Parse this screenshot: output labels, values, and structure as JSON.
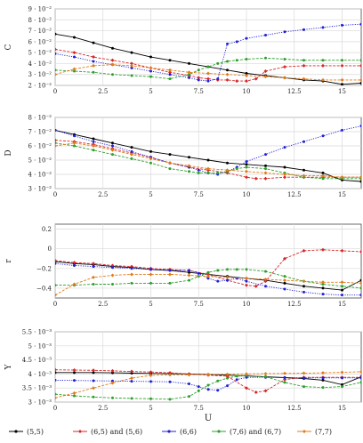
{
  "chart_data": [
    {
      "type": "line",
      "ylabel": "C",
      "xlabel": "",
      "xlim": [
        0,
        16
      ],
      "ylim": [
        0.02,
        0.09
      ],
      "xticks": [
        "0",
        "2.5",
        "5",
        "7.5",
        "10",
        "12.5",
        "15"
      ],
      "yticks": [
        "2 · 10⁻²",
        "3 · 10⁻²",
        "4 · 10⁻²",
        "5 · 10⁻²",
        "6 · 10⁻²",
        "7 · 10⁻²",
        "8 · 10⁻²",
        "9 · 10⁻²"
      ],
      "grid": true,
      "series": [
        {
          "name": "(5,5)",
          "color": "#000000",
          "x": [
            0,
            1,
            2,
            3,
            4,
            5,
            6,
            7,
            8,
            9,
            10,
            11,
            12,
            13,
            14,
            15,
            16
          ],
          "y": [
            0.067,
            0.064,
            0.059,
            0.054,
            0.05,
            0.046,
            0.043,
            0.04,
            0.037,
            0.034,
            0.031,
            0.029,
            0.027,
            0.025,
            0.024,
            0.021,
            0.022
          ]
        },
        {
          "name": "(6,5) and (5,6)",
          "color": "#d62728",
          "x": [
            0,
            1,
            2,
            3,
            4,
            5,
            6,
            7,
            7.5,
            8,
            8.5,
            9,
            9.5,
            10,
            10.5,
            11,
            12,
            13,
            14,
            15,
            16
          ],
          "y": [
            0.053,
            0.05,
            0.046,
            0.043,
            0.04,
            0.036,
            0.032,
            0.029,
            0.027,
            0.026,
            0.025,
            0.025,
            0.024,
            0.024,
            0.026,
            0.033,
            0.037,
            0.038,
            0.038,
            0.038,
            0.038
          ]
        },
        {
          "name": "(6,6)",
          "color": "#1f1fd6",
          "x": [
            0,
            1,
            2,
            3,
            4,
            5,
            6,
            7,
            7.5,
            8,
            8.5,
            9,
            9.5,
            10,
            11,
            12,
            13,
            14,
            15,
            16
          ],
          "y": [
            0.049,
            0.046,
            0.042,
            0.039,
            0.036,
            0.033,
            0.03,
            0.027,
            0.025,
            0.024,
            0.026,
            0.058,
            0.06,
            0.063,
            0.066,
            0.069,
            0.071,
            0.073,
            0.075,
            0.076
          ]
        },
        {
          "name": "(7,6) and (6,7)",
          "color": "#2ca02c",
          "x": [
            0,
            1,
            2,
            3,
            4,
            5,
            6,
            7,
            7.5,
            8,
            8.5,
            9,
            9.5,
            10,
            11,
            12,
            13,
            14,
            15,
            16
          ],
          "y": [
            0.034,
            0.033,
            0.032,
            0.03,
            0.029,
            0.028,
            0.026,
            0.03,
            0.034,
            0.037,
            0.04,
            0.042,
            0.043,
            0.044,
            0.045,
            0.044,
            0.043,
            0.043,
            0.043,
            0.043
          ]
        },
        {
          "name": "(7,7)",
          "color": "#e07b1a",
          "x": [
            0,
            1,
            2,
            3,
            4,
            5,
            6,
            7,
            8,
            9,
            10,
            11,
            12,
            13,
            14,
            15,
            16
          ],
          "y": [
            0.03,
            0.035,
            0.038,
            0.039,
            0.038,
            0.036,
            0.034,
            0.032,
            0.031,
            0.03,
            0.029,
            0.028,
            0.027,
            0.026,
            0.025,
            0.025,
            0.025
          ]
        }
      ]
    },
    {
      "type": "line",
      "ylabel": "D",
      "xlabel": "",
      "xlim": [
        0,
        16
      ],
      "ylim": [
        0.03,
        0.08
      ],
      "xticks": [
        "0",
        "2.5",
        "5",
        "7.5",
        "10",
        "12.5",
        "15"
      ],
      "yticks": [
        "3 · 10⁻²",
        "4 · 10⁻²",
        "5 · 10⁻²",
        "6 · 10⁻²",
        "7 · 10⁻²",
        "8 · 10⁻²"
      ],
      "grid": true,
      "series": [
        {
          "name": "(5,5)",
          "color": "#000000",
          "x": [
            0,
            1,
            2,
            3,
            4,
            5,
            6,
            7,
            8,
            9,
            10,
            11,
            12,
            13,
            14,
            15,
            16
          ],
          "y": [
            0.071,
            0.068,
            0.065,
            0.062,
            0.059,
            0.056,
            0.054,
            0.052,
            0.05,
            0.048,
            0.047,
            0.046,
            0.045,
            0.043,
            0.041,
            0.036,
            0.035
          ]
        },
        {
          "name": "(6,5) and (5,6)",
          "color": "#d62728",
          "x": [
            0,
            1,
            2,
            3,
            4,
            5,
            6,
            7,
            8,
            9,
            10,
            10.5,
            11,
            12,
            13,
            14,
            15,
            16
          ],
          "y": [
            0.064,
            0.063,
            0.061,
            0.058,
            0.055,
            0.052,
            0.048,
            0.045,
            0.043,
            0.041,
            0.038,
            0.037,
            0.037,
            0.038,
            0.038,
            0.038,
            0.038,
            0.038
          ]
        },
        {
          "name": "(6,6)",
          "color": "#1f1fd6",
          "x": [
            0,
            1,
            2,
            3,
            4,
            5,
            6,
            7,
            7.5,
            8,
            8.5,
            9,
            9.5,
            10,
            11,
            12,
            13,
            14,
            15,
            16
          ],
          "y": [
            0.071,
            0.067,
            0.063,
            0.06,
            0.056,
            0.052,
            0.048,
            0.045,
            0.043,
            0.041,
            0.04,
            0.042,
            0.045,
            0.049,
            0.054,
            0.059,
            0.063,
            0.067,
            0.071,
            0.074
          ]
        },
        {
          "name": "(7,6) and (6,7)",
          "color": "#2ca02c",
          "x": [
            0,
            1,
            2,
            3,
            4,
            5,
            6,
            7,
            7.5,
            8,
            8.5,
            9,
            9.5,
            10,
            11,
            12,
            13,
            14,
            15,
            16
          ],
          "y": [
            0.062,
            0.06,
            0.057,
            0.054,
            0.051,
            0.048,
            0.044,
            0.042,
            0.041,
            0.041,
            0.041,
            0.042,
            0.044,
            0.045,
            0.044,
            0.041,
            0.038,
            0.037,
            0.037,
            0.037
          ]
        },
        {
          "name": "(7,7)",
          "color": "#e07b1a",
          "x": [
            0,
            1,
            2,
            3,
            4,
            5,
            6,
            7,
            8,
            9,
            10,
            11,
            12,
            13,
            14,
            15,
            16
          ],
          "y": [
            0.06,
            0.062,
            0.06,
            0.057,
            0.054,
            0.051,
            0.048,
            0.046,
            0.044,
            0.043,
            0.042,
            0.041,
            0.04,
            0.039,
            0.039,
            0.038,
            0.038
          ]
        }
      ]
    },
    {
      "type": "line",
      "ylabel": "r",
      "xlabel": "",
      "xlim": [
        0,
        16
      ],
      "ylim": [
        -0.5,
        0.25
      ],
      "xticks": [
        "0",
        "2.5",
        "5",
        "7.5",
        "10",
        "12.5",
        "15"
      ],
      "yticks": [
        "−0.4",
        "−0.2",
        "0",
        "0.2"
      ],
      "grid": true,
      "series": [
        {
          "name": "(5,5)",
          "color": "#000000",
          "x": [
            0,
            1,
            2,
            3,
            4,
            5,
            6,
            7,
            8,
            9,
            10,
            11,
            12,
            13,
            14,
            15,
            16
          ],
          "y": [
            -0.13,
            -0.15,
            -0.16,
            -0.18,
            -0.19,
            -0.21,
            -0.22,
            -0.24,
            -0.26,
            -0.28,
            -0.3,
            -0.32,
            -0.35,
            -0.38,
            -0.4,
            -0.42,
            -0.32
          ]
        },
        {
          "name": "(6,5) and (5,6)",
          "color": "#d62728",
          "x": [
            0,
            1,
            2,
            3,
            4,
            5,
            6,
            7,
            8,
            9,
            10,
            10.5,
            11,
            12,
            13,
            14,
            15,
            16
          ],
          "y": [
            -0.12,
            -0.14,
            -0.15,
            -0.17,
            -0.18,
            -0.2,
            -0.21,
            -0.22,
            -0.26,
            -0.32,
            -0.37,
            -0.38,
            -0.33,
            -0.1,
            -0.02,
            -0.01,
            -0.02,
            -0.03
          ]
        },
        {
          "name": "(6,6)",
          "color": "#1f1fd6",
          "x": [
            0,
            1,
            2,
            3,
            4,
            5,
            6,
            7,
            7.5,
            8,
            8.5,
            9,
            9.5,
            10,
            11,
            12,
            13,
            14,
            15,
            16
          ],
          "y": [
            -0.15,
            -0.17,
            -0.18,
            -0.19,
            -0.2,
            -0.21,
            -0.22,
            -0.22,
            -0.25,
            -0.3,
            -0.33,
            -0.32,
            -0.3,
            -0.33,
            -0.38,
            -0.41,
            -0.44,
            -0.46,
            -0.47,
            -0.47
          ]
        },
        {
          "name": "(7,6) and (6,7)",
          "color": "#2ca02c",
          "x": [
            0,
            1,
            2,
            3,
            4,
            5,
            6,
            7,
            7.5,
            8,
            8.5,
            9,
            9.5,
            10,
            11,
            12,
            13,
            14,
            15,
            16
          ],
          "y": [
            -0.37,
            -0.37,
            -0.36,
            -0.36,
            -0.35,
            -0.35,
            -0.35,
            -0.32,
            -0.28,
            -0.24,
            -0.22,
            -0.21,
            -0.21,
            -0.21,
            -0.23,
            -0.28,
            -0.33,
            -0.36,
            -0.38,
            -0.4
          ]
        },
        {
          "name": "(7,7)",
          "color": "#e07b1a",
          "x": [
            0,
            1,
            2,
            3,
            4,
            5,
            6,
            7,
            8,
            9,
            10,
            11,
            12,
            13,
            14,
            15,
            16
          ],
          "y": [
            -0.47,
            -0.36,
            -0.29,
            -0.27,
            -0.26,
            -0.26,
            -0.26,
            -0.27,
            -0.28,
            -0.29,
            -0.3,
            -0.31,
            -0.32,
            -0.33,
            -0.34,
            -0.34,
            -0.35
          ]
        }
      ]
    },
    {
      "type": "line",
      "ylabel": "Y",
      "xlabel": "U",
      "xlim": [
        0,
        16
      ],
      "ylim": [
        0.003,
        0.0055
      ],
      "xticks": [
        "0",
        "2.5",
        "5",
        "7.5",
        "10",
        "12.5",
        "15"
      ],
      "yticks": [
        "3 · 10⁻³",
        "3.5 · 10⁻³",
        "4 · 10⁻³",
        "4.5 · 10⁻³",
        "5 · 10⁻³",
        "5.5 · 10⁻³"
      ],
      "grid": true,
      "series": [
        {
          "name": "(5,5)",
          "color": "#000000",
          "x": [
            0,
            1,
            2,
            3,
            4,
            5,
            6,
            7,
            8,
            9,
            10,
            11,
            12,
            13,
            14,
            15,
            16
          ],
          "y": [
            0.00405,
            0.00405,
            0.00405,
            0.00404,
            0.00403,
            0.00402,
            0.00401,
            0.004,
            0.00398,
            0.00396,
            0.00393,
            0.0039,
            0.00387,
            0.00384,
            0.00378,
            0.00362,
            0.0039
          ]
        },
        {
          "name": "(6,5) and (5,6)",
          "color": "#d62728",
          "x": [
            0,
            1,
            2,
            3,
            4,
            5,
            6,
            7,
            8,
            9,
            10,
            10.5,
            11,
            12,
            13,
            14,
            15,
            16
          ],
          "y": [
            0.00415,
            0.00414,
            0.00413,
            0.00411,
            0.00409,
            0.00407,
            0.00404,
            0.004,
            0.00396,
            0.00392,
            0.0035,
            0.00335,
            0.0034,
            0.0038,
            0.00388,
            0.00388,
            0.00388,
            0.00388
          ]
        },
        {
          "name": "(6,6)",
          "color": "#1f1fd6",
          "x": [
            0,
            1,
            2,
            3,
            4,
            5,
            6,
            7,
            7.5,
            8,
            8.5,
            9,
            9.5,
            10,
            11,
            12,
            13,
            14,
            15,
            16
          ],
          "y": [
            0.00378,
            0.00377,
            0.00376,
            0.00375,
            0.00374,
            0.00373,
            0.00372,
            0.00365,
            0.00355,
            0.00345,
            0.00342,
            0.00358,
            0.0038,
            0.00388,
            0.00388,
            0.00387,
            0.00386,
            0.00386,
            0.00386,
            0.00386
          ]
        },
        {
          "name": "(7,6) and (6,7)",
          "color": "#2ca02c",
          "x": [
            0,
            1,
            2,
            3,
            4,
            5,
            6,
            7,
            7.5,
            8,
            8.5,
            9,
            9.5,
            10,
            11,
            12,
            13,
            14,
            15,
            16
          ],
          "y": [
            0.00328,
            0.00322,
            0.00318,
            0.00315,
            0.00313,
            0.00312,
            0.0031,
            0.0032,
            0.0034,
            0.0036,
            0.00375,
            0.00385,
            0.00392,
            0.00395,
            0.0039,
            0.0037,
            0.00355,
            0.00352,
            0.00355,
            0.0037
          ]
        },
        {
          "name": "(7,7)",
          "color": "#e07b1a",
          "x": [
            0,
            1,
            2,
            3,
            4,
            5,
            6,
            7,
            8,
            9,
            10,
            11,
            12,
            13,
            14,
            15,
            16
          ],
          "y": [
            0.00315,
            0.00332,
            0.0035,
            0.00368,
            0.00385,
            0.00395,
            0.00397,
            0.00397,
            0.00398,
            0.00399,
            0.004,
            0.00401,
            0.00402,
            0.00403,
            0.00404,
            0.00406,
            0.00408
          ]
        }
      ]
    }
  ],
  "legend": {
    "placement": "bottom",
    "entries": [
      "(5,5)",
      "(6,5) and (5,6)",
      "(6,6)",
      "(7,6) and (6,7)",
      "(7,7)"
    ]
  }
}
